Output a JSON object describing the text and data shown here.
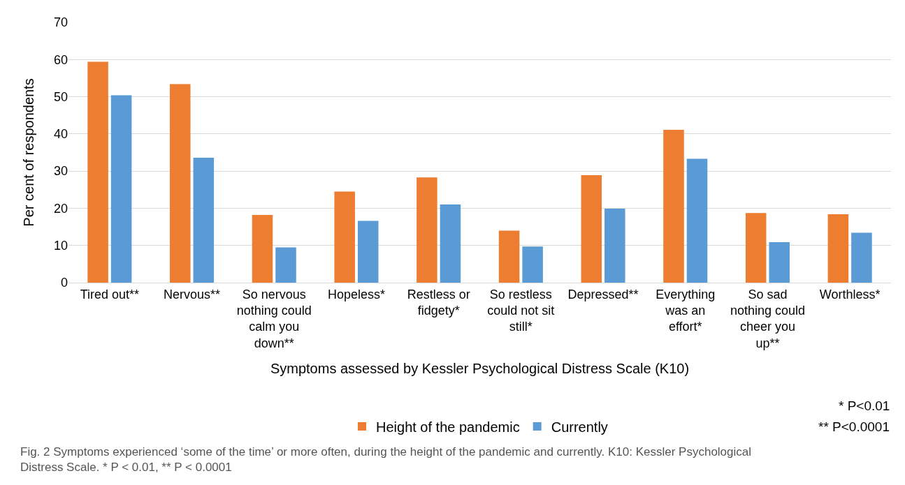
{
  "chart_data": {
    "type": "bar",
    "xlabel": "Symptoms assessed by Kessler Psychological Distress Scale (K10)",
    "ylabel": "Per cent of respondents",
    "categories": [
      "Tired out**",
      "Nervous**",
      "So nervous nothing could calm you down**",
      "Hopeless*",
      "Restless or fidgety*",
      "So restless could not sit still*",
      "Depressed**",
      "Everything was an effort*",
      "So sad nothing could cheer you up**",
      "Worthless*"
    ],
    "series": [
      {
        "name": "Height of the pandemic",
        "color": "#ed7d31",
        "values": [
          59.4,
          53.4,
          18.2,
          24.5,
          28.3,
          14.0,
          28.9,
          41.1,
          18.7,
          18.4
        ]
      },
      {
        "name": "Currently",
        "color": "#5b9bd5",
        "values": [
          50.4,
          33.6,
          9.5,
          16.6,
          21.0,
          9.7,
          19.9,
          33.3,
          10.9,
          13.4
        ]
      }
    ],
    "ylim": [
      0,
      70
    ],
    "yticks": [
      0,
      10,
      20,
      30,
      40,
      50,
      60,
      70
    ],
    "grid": "y",
    "legend": "bottom",
    "annotations": [
      "* P<0.01",
      "** P<0.0001",
      "Fig. 2 Symptoms experienced ‘some of the time’ or more often, during the height of the pandemic and currently. K10: Kessler Psychological Distress Scale. * P < 0.01, ** P < 0.0001"
    ]
  }
}
